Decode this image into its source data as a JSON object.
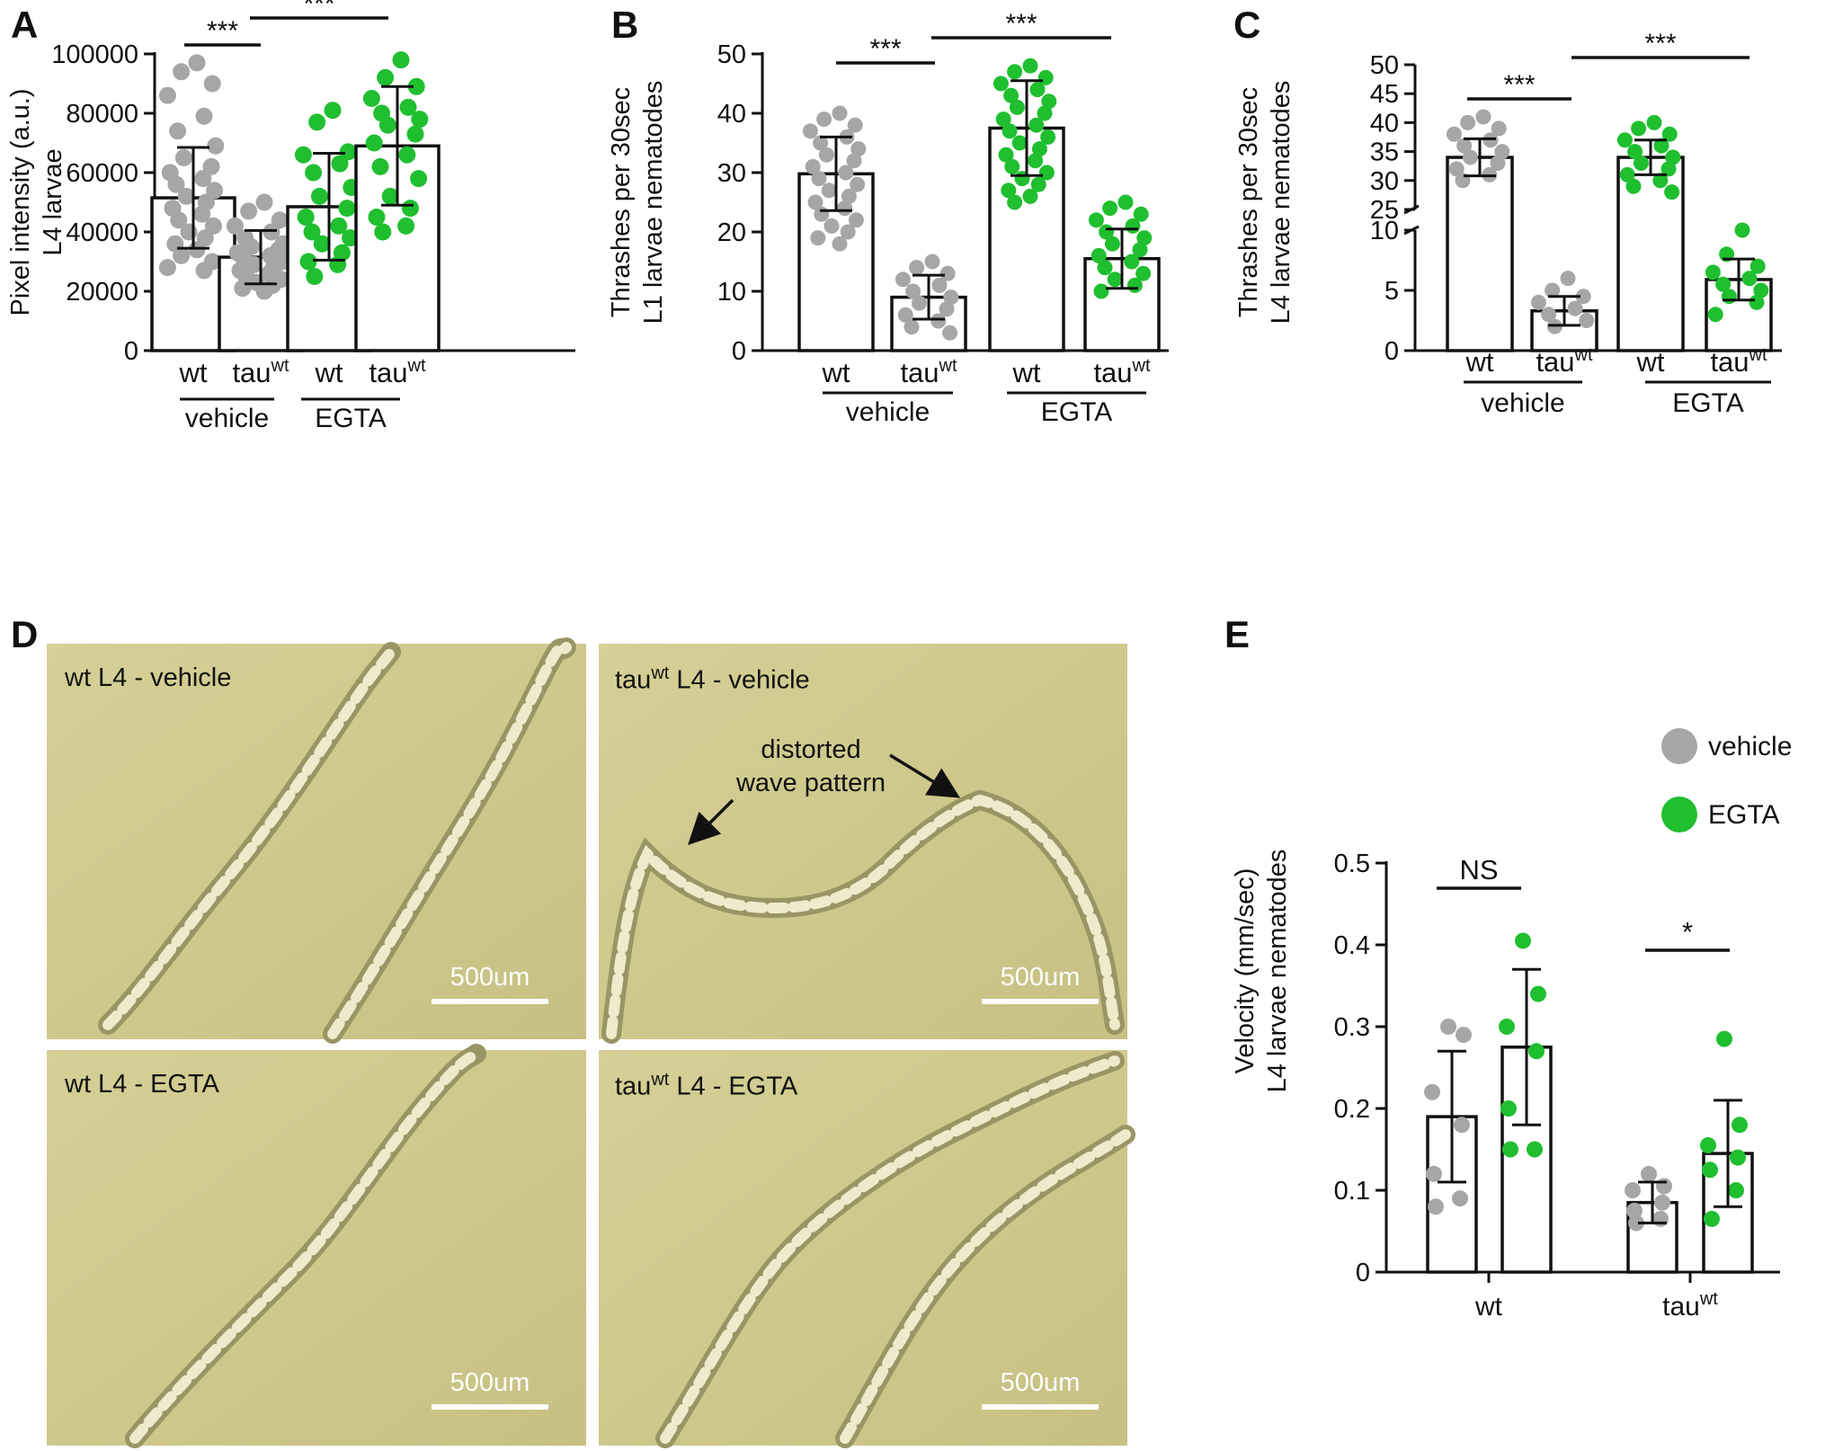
{
  "panel_letters": [
    "A",
    "B",
    "C",
    "D",
    "E"
  ],
  "chart_data": [
    {
      "panel": "A",
      "type": "bar",
      "ylabel_lines": [
        "Pixel intensity (a.u.)",
        "L4 larvae"
      ],
      "ylim": [
        0,
        100000
      ],
      "yticks": [
        "0",
        "20000",
        "40000",
        "60000",
        "80000",
        "100000"
      ],
      "categories": [
        "wt",
        "tau",
        "wt",
        "tau"
      ],
      "category_superscripts": [
        "",
        "wt",
        "",
        "wt"
      ],
      "groups": [
        "vehicle",
        "EGTA"
      ],
      "series": [
        {
          "category": "wt",
          "group": "vehicle",
          "mean": 51500,
          "sd": 17000,
          "color": "#a6a6a6",
          "points": [
            97000,
            94000,
            90000,
            86000,
            79000,
            74000,
            69000,
            65000,
            62000,
            60000,
            58000,
            56000,
            54000,
            52000,
            50000,
            48000,
            46000,
            44000,
            42000,
            40000,
            38000,
            36000,
            34000,
            32000,
            30000,
            28000,
            27000
          ]
        },
        {
          "category": "tau",
          "group": "vehicle",
          "mean": 31500,
          "sd": 9000,
          "color": "#a6a6a6",
          "points": [
            50000,
            47000,
            44000,
            42000,
            40000,
            38000,
            36000,
            35000,
            34000,
            33000,
            32000,
            31000,
            30000,
            29000,
            28000,
            27000,
            26000,
            25000,
            24000,
            23000,
            22000,
            21000,
            20000
          ]
        },
        {
          "category": "wt",
          "group": "EGTA",
          "mean": 48500,
          "sd": 18000,
          "color": "#1fbf2f",
          "points": [
            81000,
            77000,
            67000,
            66000,
            63000,
            60000,
            55000,
            52000,
            48000,
            45000,
            42000,
            40000,
            38000,
            36000,
            33000,
            30000,
            29000,
            25000
          ]
        },
        {
          "category": "tau",
          "group": "EGTA",
          "mean": 69000,
          "sd": 20000,
          "color": "#1fbf2f",
          "points": [
            98000,
            92000,
            89000,
            85000,
            82000,
            80000,
            78000,
            76000,
            73000,
            70000,
            66000,
            62000,
            58000,
            52000,
            48000,
            45000,
            42000,
            40000
          ]
        }
      ],
      "significance": [
        "***",
        "***"
      ]
    },
    {
      "panel": "B",
      "type": "bar",
      "ylabel_lines": [
        "Thrashes per 30sec",
        "L1 larvae nematodes"
      ],
      "ylim": [
        0,
        50
      ],
      "yticks": [
        "0",
        "10",
        "20",
        "30",
        "40",
        "50"
      ],
      "categories": [
        "wt",
        "tau",
        "wt",
        "tau"
      ],
      "category_superscripts": [
        "",
        "wt",
        "",
        "wt"
      ],
      "groups": [
        "vehicle",
        "EGTA"
      ],
      "series": [
        {
          "category": "wt",
          "group": "vehicle",
          "mean": 29.8,
          "sd": 6.2,
          "color": "#a6a6a6",
          "points": [
            40,
            39,
            38,
            37,
            36,
            35,
            34,
            33,
            32,
            31,
            30,
            29,
            28,
            27,
            26,
            25,
            24,
            23,
            22,
            21,
            20,
            19,
            18
          ]
        },
        {
          "category": "tau",
          "group": "vehicle",
          "mean": 9,
          "sd": 3.7,
          "color": "#a6a6a6",
          "points": [
            15,
            14,
            13,
            12,
            11,
            10,
            9,
            8,
            7,
            6,
            5,
            4,
            3
          ]
        },
        {
          "category": "wt",
          "group": "EGTA",
          "mean": 37.5,
          "sd": 8,
          "color": "#1fbf2f",
          "points": [
            48,
            47,
            46,
            45,
            44,
            43,
            42,
            41,
            40,
            39,
            38,
            37,
            36,
            35,
            34,
            33,
            32,
            31,
            30,
            29,
            28,
            27,
            26,
            25
          ]
        },
        {
          "category": "tau",
          "group": "EGTA",
          "mean": 15.5,
          "sd": 5,
          "color": "#1fbf2f",
          "points": [
            25,
            24,
            23,
            22,
            21,
            20,
            19,
            18,
            17,
            16,
            15,
            14,
            13,
            12,
            11,
            10
          ]
        }
      ],
      "significance": [
        "***",
        "***"
      ]
    },
    {
      "panel": "C",
      "type": "bar",
      "ylabel_lines": [
        "Thrashes per 30sec",
        "L4 larvae nematodes"
      ],
      "axis_break": true,
      "lower_ylim": [
        0,
        10
      ],
      "upper_ylim": [
        25,
        50
      ],
      "yticks_lower": [
        "0",
        "5",
        "10"
      ],
      "yticks_upper": [
        "25",
        "30",
        "35",
        "40",
        "45",
        "50"
      ],
      "categories": [
        "wt",
        "tau",
        "wt",
        "tau"
      ],
      "category_superscripts": [
        "",
        "wt",
        "",
        "wt"
      ],
      "groups": [
        "vehicle",
        "EGTA"
      ],
      "series": [
        {
          "category": "wt",
          "group": "vehicle",
          "mean": 34,
          "sd": 3.2,
          "color": "#a6a6a6",
          "points": [
            41,
            40,
            39,
            38,
            37,
            36,
            35,
            34,
            33,
            32,
            31,
            30
          ]
        },
        {
          "category": "tau",
          "group": "vehicle",
          "mean": 3.3,
          "sd": 1.2,
          "color": "#a6a6a6",
          "points": [
            6,
            5,
            4.5,
            4,
            3.5,
            3,
            2.5,
            2
          ]
        },
        {
          "category": "wt",
          "group": "EGTA",
          "mean": 34,
          "sd": 3,
          "color": "#1fbf2f",
          "points": [
            40,
            39,
            38,
            37,
            36,
            35,
            34,
            33,
            32,
            31,
            30,
            29,
            28
          ]
        },
        {
          "category": "tau",
          "group": "EGTA",
          "mean": 5.9,
          "sd": 1.7,
          "color": "#1fbf2f",
          "points": [
            10,
            8,
            7,
            6.5,
            6,
            5.5,
            5,
            4.5,
            4,
            3
          ]
        }
      ],
      "significance": [
        "***",
        "***"
      ]
    },
    {
      "panel": "E",
      "type": "bar",
      "ylabel_lines": [
        "Velocity (mm/sec)",
        "L4 larvae nematodes"
      ],
      "ylim": [
        0,
        0.5
      ],
      "yticks": [
        "0",
        "0.1",
        "0.2",
        "0.3",
        "0.4",
        "0.5"
      ],
      "groups": [
        "wt",
        "tau"
      ],
      "group_superscripts": [
        "",
        "wt"
      ],
      "legend": [
        {
          "name": "vehicle",
          "color": "#a6a6a6"
        },
        {
          "name": "EGTA",
          "color": "#1fbf2f"
        }
      ],
      "series": [
        {
          "group": "wt",
          "treatment": "vehicle",
          "mean": 0.19,
          "sd": 0.08,
          "color": "#a6a6a6",
          "points": [
            0.3,
            0.29,
            0.22,
            0.18,
            0.12,
            0.09,
            0.08
          ]
        },
        {
          "group": "wt",
          "treatment": "EGTA",
          "mean": 0.275,
          "sd": 0.095,
          "color": "#1fbf2f",
          "points": [
            0.405,
            0.34,
            0.3,
            0.27,
            0.2,
            0.15,
            0.15
          ]
        },
        {
          "group": "tau",
          "treatment": "vehicle",
          "mean": 0.085,
          "sd": 0.025,
          "color": "#a6a6a6",
          "points": [
            0.12,
            0.105,
            0.1,
            0.085,
            0.075,
            0.065,
            0.06
          ]
        },
        {
          "group": "tau",
          "treatment": "EGTA",
          "mean": 0.145,
          "sd": 0.065,
          "color": "#1fbf2f",
          "points": [
            0.285,
            0.18,
            0.155,
            0.14,
            0.125,
            0.1,
            0.065
          ]
        }
      ],
      "significance": [
        "NS",
        "*"
      ]
    }
  ],
  "photo_panel": {
    "panel": "D",
    "tiles": [
      {
        "label_pre": "wt L4 - vehicle",
        "label_sup": "",
        "label_post": "",
        "scalebar": "500um"
      },
      {
        "label_pre": "tau",
        "label_sup": "wt",
        "label_post": " L4 - vehicle",
        "scalebar": "500um",
        "annotation_line1": "distorted",
        "annotation_line2": "wave pattern"
      },
      {
        "label_pre": "wt L4 - EGTA",
        "label_sup": "",
        "label_post": "",
        "scalebar": "500um"
      },
      {
        "label_pre": "tau",
        "label_sup": "wt",
        "label_post": " L4 - EGTA",
        "scalebar": "500um"
      }
    ]
  }
}
